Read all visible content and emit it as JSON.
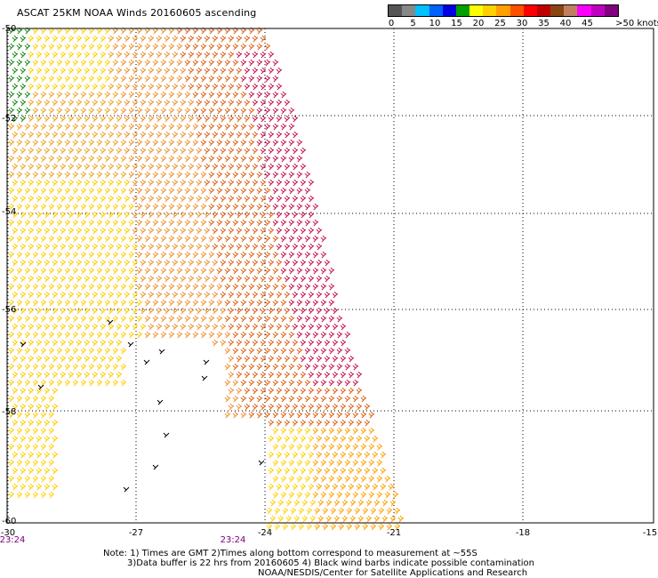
{
  "title": "ASCAT 25KM NOAA Winds 20160605 ascending",
  "legend": {
    "colors": [
      "#555555",
      "#888888",
      "#00c0ff",
      "#0060ff",
      "#0000e0",
      "#00a000",
      "#ffff00",
      "#ffd000",
      "#ffa000",
      "#ff5000",
      "#ff0000",
      "#c00000",
      "#8b4513",
      "#c08060",
      "#ff00ff",
      "#c000c0",
      "#800080"
    ],
    "labels": [
      "0",
      "5",
      "10",
      "15",
      "20",
      "25",
      "30",
      "35",
      "40",
      "45",
      ">50 knots"
    ]
  },
  "axes": {
    "lon_labels": [
      "-30",
      "-27",
      "-24",
      "-21",
      "-18",
      "-15"
    ],
    "lat_labels": [
      "-50",
      "-52",
      "-54",
      "-56",
      "-58",
      "-60"
    ]
  },
  "times": [
    "23:24",
    "23:24"
  ],
  "notes": {
    "line1": "Note: 1) Times are GMT 2)Times along bottom correspond to measurement at ~55S",
    "line2": "3)Data buffer is 22 hrs from 20160605 4) Black wind barbs indicate possible contamination",
    "line3": "NOAA/NESDIS/Center for Satellite Applications and Research"
  }
}
